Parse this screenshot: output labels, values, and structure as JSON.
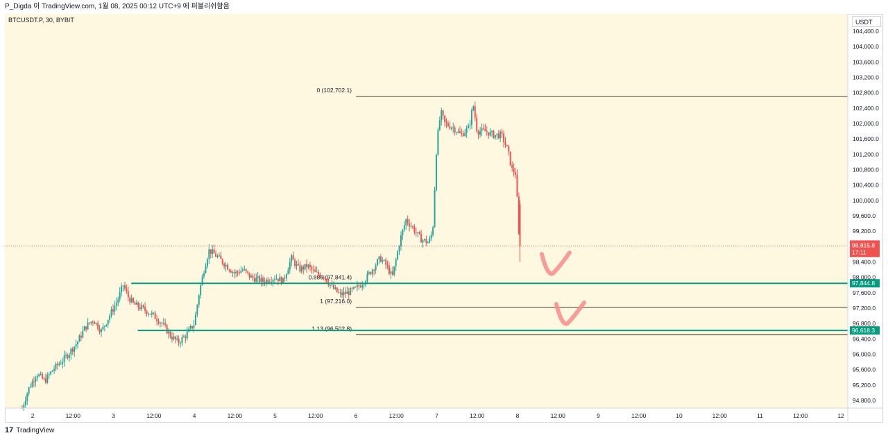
{
  "header": {
    "publish_line": "P_Digda 이 TradingView.com, 1월 08, 2025 00:12 UTC+9 에 퍼블리쉬함음"
  },
  "symbol_label": "BTCUSDT.P, 30, BYBIT",
  "currency_label": "USDT",
  "footer": {
    "logo_text": "17",
    "brand": "TradingView"
  },
  "colors": {
    "background": "#fff8e1",
    "up": "#26a69a",
    "down": "#ef5350",
    "level_line": "#000000",
    "support_line": "#089981",
    "annotation": "#f48c8c",
    "price_badge": "#ef5350",
    "support_badge": "#089981"
  },
  "chart_data": {
    "type": "candlestick",
    "symbol": "BTCUSDT.P",
    "interval": "30",
    "exchange": "BYBIT",
    "ylim": [
      94600,
      104850
    ],
    "x_range_days": [
      1.656,
      12.0
    ],
    "y_ticks": [
      "104,400.0",
      "104,000.0",
      "103,600.0",
      "103,200.0",
      "102,800.0",
      "102,400.0",
      "102,000.0",
      "101,600.0",
      "101,200.0",
      "100,800.0",
      "100,400.0",
      "100,000.0",
      "99,600.0",
      "99,200.0",
      "98,400.0",
      "98,000.0",
      "97,600.0",
      "97,200.0",
      "96,800.0",
      "96,400.0",
      "96,000.0",
      "95,600.0",
      "95,200.0",
      "94,800.0"
    ],
    "x_ticks": [
      {
        "t": 2.0,
        "label": "2"
      },
      {
        "t": 2.5,
        "label": "12:00"
      },
      {
        "t": 3.0,
        "label": "3"
      },
      {
        "t": 3.5,
        "label": "12:00"
      },
      {
        "t": 4.0,
        "label": "4"
      },
      {
        "t": 4.5,
        "label": "12:00"
      },
      {
        "t": 5.0,
        "label": "5"
      },
      {
        "t": 5.5,
        "label": "12:00"
      },
      {
        "t": 6.0,
        "label": "6"
      },
      {
        "t": 6.5,
        "label": "12:00"
      },
      {
        "t": 7.0,
        "label": "7"
      },
      {
        "t": 7.5,
        "label": "12:00"
      },
      {
        "t": 8.0,
        "label": "8"
      },
      {
        "t": 8.5,
        "label": "12:00"
      },
      {
        "t": 9.0,
        "label": "9"
      },
      {
        "t": 9.5,
        "label": "12:00"
      },
      {
        "t": 10.0,
        "label": "10"
      },
      {
        "t": 10.5,
        "label": "12:00"
      },
      {
        "t": 11.0,
        "label": "11"
      },
      {
        "t": 11.5,
        "label": "12:00"
      },
      {
        "t": 12.0,
        "label": "12"
      }
    ],
    "last_price": {
      "value": 98815.8,
      "label": "98,815.8",
      "countdown": "17:11"
    },
    "price_path": [
      [
        1.87,
        94600
      ],
      [
        1.95,
        95100
      ],
      [
        2.05,
        95500
      ],
      [
        2.15,
        95300
      ],
      [
        2.25,
        95600
      ],
      [
        2.4,
        95900
      ],
      [
        2.55,
        96300
      ],
      [
        2.65,
        96700
      ],
      [
        2.75,
        96900
      ],
      [
        2.85,
        96600
      ],
      [
        2.95,
        97000
      ],
      [
        3.05,
        97400
      ],
      [
        3.12,
        97800
      ],
      [
        3.18,
        97500
      ],
      [
        3.25,
        97300
      ],
      [
        3.35,
        97200
      ],
      [
        3.5,
        97000
      ],
      [
        3.6,
        96800
      ],
      [
        3.7,
        96500
      ],
      [
        3.8,
        96300
      ],
      [
        3.9,
        96500
      ],
      [
        4.0,
        96800
      ],
      [
        4.06,
        97600
      ],
      [
        4.12,
        98200
      ],
      [
        4.18,
        98700
      ],
      [
        4.25,
        98600
      ],
      [
        4.35,
        98400
      ],
      [
        4.5,
        98100
      ],
      [
        4.6,
        98200
      ],
      [
        4.7,
        98000
      ],
      [
        4.85,
        97900
      ],
      [
        5.0,
        98000
      ],
      [
        5.1,
        97900
      ],
      [
        5.2,
        98500
      ],
      [
        5.3,
        98200
      ],
      [
        5.4,
        98300
      ],
      [
        5.5,
        98100
      ],
      [
        5.6,
        98050
      ],
      [
        5.7,
        97750
      ],
      [
        5.8,
        97550
      ],
      [
        5.9,
        97600
      ],
      [
        6.0,
        97700
      ],
      [
        6.1,
        97900
      ],
      [
        6.2,
        98200
      ],
      [
        6.3,
        98500
      ],
      [
        6.38,
        98300
      ],
      [
        6.45,
        98000
      ],
      [
        6.55,
        99000
      ],
      [
        6.62,
        99500
      ],
      [
        6.7,
        99300
      ],
      [
        6.8,
        99000
      ],
      [
        6.9,
        98900
      ],
      [
        6.95,
        99200
      ],
      [
        7.0,
        101500
      ],
      [
        7.05,
        102300
      ],
      [
        7.1,
        102000
      ],
      [
        7.2,
        101900
      ],
      [
        7.3,
        101700
      ],
      [
        7.4,
        101900
      ],
      [
        7.45,
        102500
      ],
      [
        7.5,
        101800
      ],
      [
        7.6,
        101800
      ],
      [
        7.7,
        101700
      ],
      [
        7.8,
        101700
      ],
      [
        7.88,
        101300
      ],
      [
        7.93,
        100800
      ],
      [
        7.98,
        100700
      ],
      [
        8.0,
        99800
      ],
      [
        8.02,
        98900
      ],
      [
        8.03,
        98815.8
      ]
    ],
    "levels": [
      {
        "label": "0 (102,702.1)",
        "value": 102702.1,
        "start": 6.0
      },
      {
        "label": "0.886 (97,841.4)",
        "value": 97841.4,
        "start": 6.0
      },
      {
        "label": "1 (97,216.0)",
        "value": 97216.0,
        "start": 6.0
      },
      {
        "label": "1.13 (96,502.8)",
        "value": 96502.8,
        "start": 6.0
      }
    ],
    "support_lines": [
      {
        "value": 97844.8,
        "label": "97,844.8",
        "start": 3.22
      },
      {
        "value": 96618.3,
        "label": "96,618.3",
        "start": 3.3
      }
    ],
    "annotations": [
      {
        "type": "checkmark",
        "t": 8.42,
        "value": 98100
      },
      {
        "type": "checkmark",
        "t": 8.6,
        "value": 96800
      }
    ]
  }
}
